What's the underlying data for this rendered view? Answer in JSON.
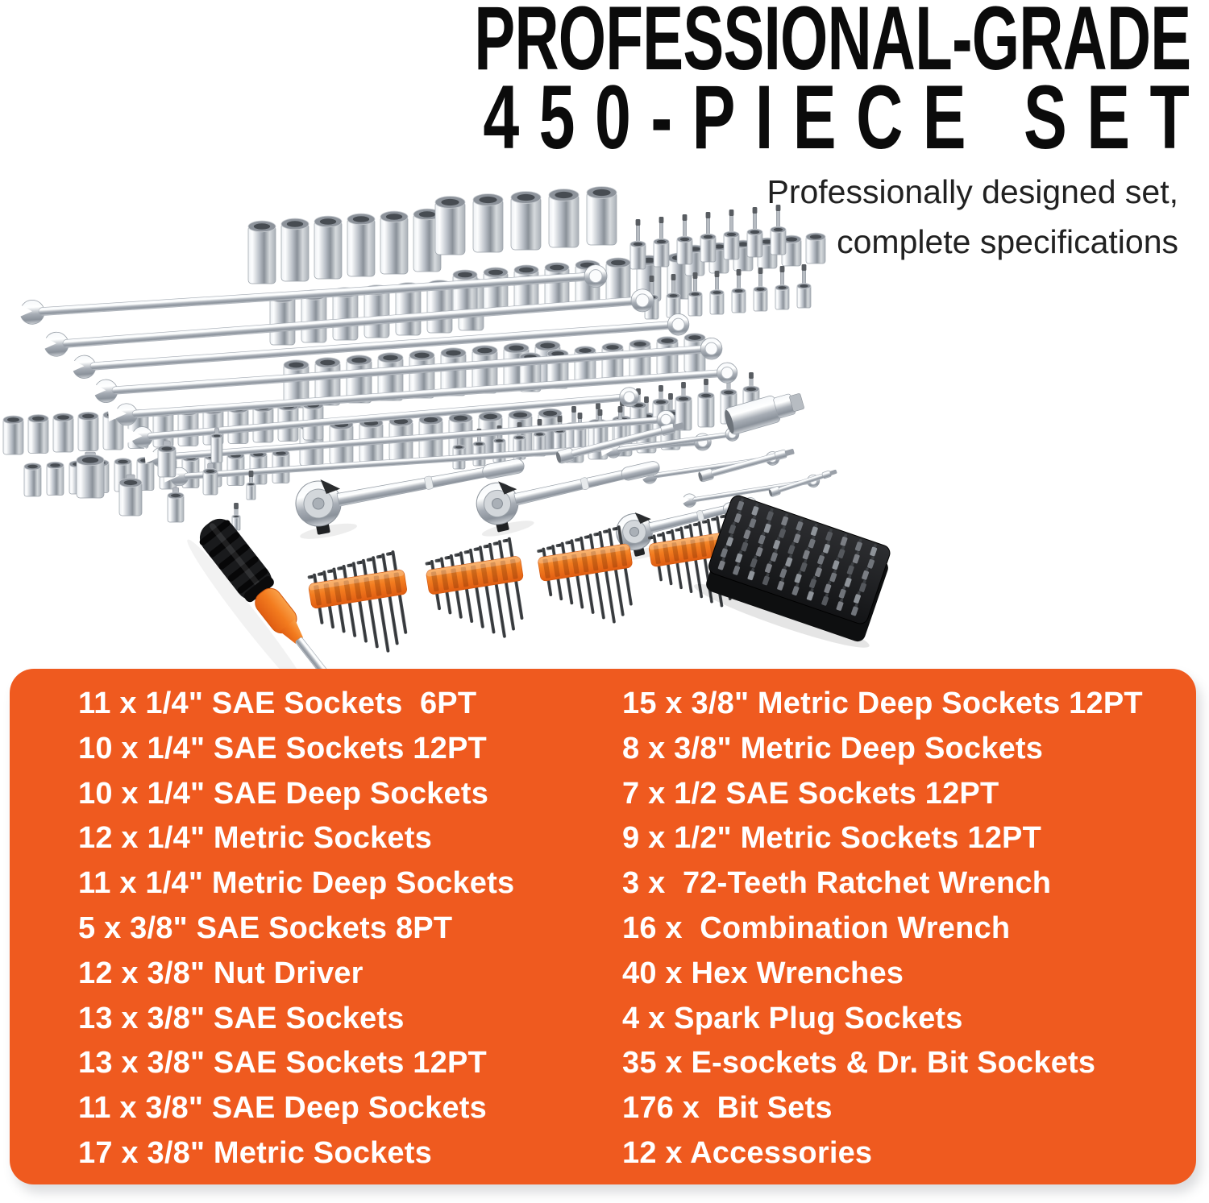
{
  "header": {
    "title_line1": "PROFESSIONAL-GRADE",
    "title_line2": "450-PIECE SET",
    "subtitle_line1": "Professionally designed set,",
    "subtitle_line2": "complete specifications",
    "title_color": "#0b0b0b",
    "subtitle_color": "#212121"
  },
  "specs_panel": {
    "bg_color": "#EF5A1F",
    "text_color": "#FFFFFF",
    "left_column": [
      "11 x 1/4\" SAE Sockets  6PT",
      "10 x 1/4\" SAE Sockets 12PT",
      "10 x 1/4\" SAE Deep Sockets",
      "12 x 1/4\" Metric Sockets",
      "11 x 1/4\" Metric Deep Sockets",
      "5 x 3/8\" SAE Sockets 8PT",
      "12 x 3/8\" Nut Driver",
      "13 x 3/8\" SAE Sockets",
      "13 x 3/8\" SAE Sockets 12PT",
      "11 x 3/8\" SAE Deep Sockets",
      "17 x 3/8\" Metric Sockets"
    ],
    "right_column": [
      "15 x 3/8\" Metric Deep Sockets 12PT",
      "8 x 3/8\" Metric Deep Sockets",
      "7 x 1/2 SAE Sockets 12PT",
      "9 x 1/2\" Metric Sockets 12PT",
      "3 x  72-Teeth Ratchet Wrench",
      "16 x  Combination Wrench",
      "40 x Hex Wrenches",
      "4 x Spark Plug Sockets",
      "35 x E-sockets & Dr. Bit Sockets",
      "176 x  Bit Sets",
      "12 x Accessories"
    ]
  },
  "illustration": {
    "chrome_color": "#C9CED4",
    "accent_orange": "#F37C1F",
    "handle_black": "#191A1C",
    "items": [
      "socket-clusters-icon",
      "bit-socket-rows-icon",
      "combination-wrenches-icon",
      "adapters-icon",
      "extension-bars-icon",
      "spark-plug-socket-icon",
      "ratchet-wrenches-icon",
      "hex-key-sets-icon",
      "screwdriver-icon",
      "bit-set-block-icon"
    ]
  }
}
